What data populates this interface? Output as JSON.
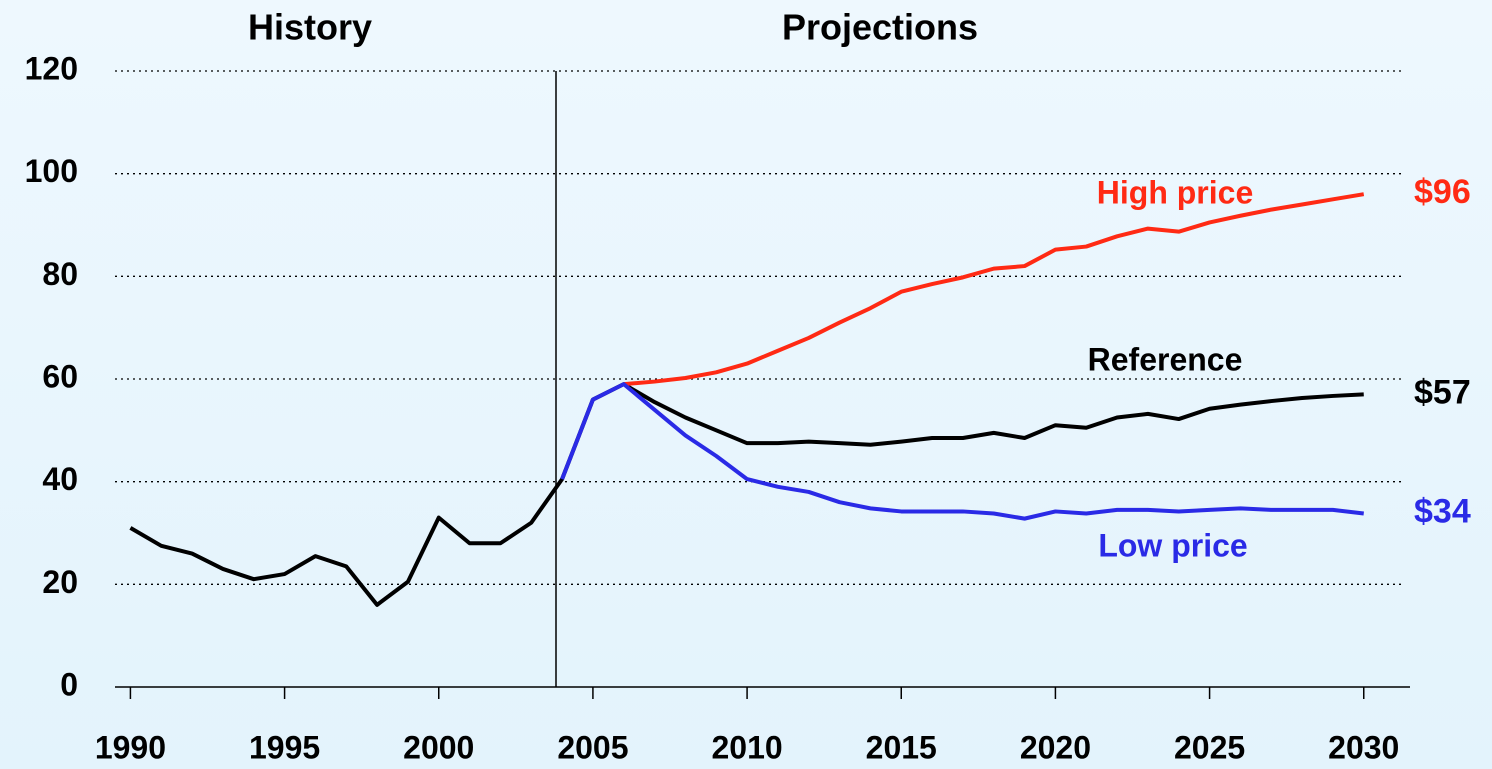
{
  "chart_data": {
    "type": "line",
    "annotations": [
      "History",
      "Projections"
    ],
    "x": [
      1990,
      1991,
      1992,
      1993,
      1994,
      1995,
      1996,
      1997,
      1998,
      1999,
      2000,
      2001,
      2002,
      2003,
      2004,
      2005,
      2006,
      2007,
      2008,
      2009,
      2010,
      2011,
      2012,
      2013,
      2014,
      2015,
      2016,
      2017,
      2018,
      2019,
      2020,
      2021,
      2022,
      2023,
      2024,
      2025,
      2026,
      2027,
      2028,
      2029,
      2030
    ],
    "series": [
      {
        "name": "Reference",
        "color": "#000000",
        "values": [
          31,
          27.5,
          26,
          23,
          21,
          22,
          25.5,
          23.5,
          16,
          20.5,
          33,
          28,
          28,
          32,
          40.5,
          56,
          59,
          55.5,
          52.5,
          50,
          47.5,
          47.5,
          47.8,
          47.5,
          47.2,
          47.8,
          48.5,
          48.5,
          49.5,
          48.5,
          51,
          50.5,
          52.5,
          53.2,
          52.2,
          54.2,
          55,
          55.7,
          56.3,
          56.7,
          57
        ],
        "value_labels": [
          null,
          null,
          null,
          null,
          null,
          null,
          null,
          null,
          null,
          null,
          null,
          null,
          null,
          null,
          null,
          null,
          null,
          null,
          null,
          null,
          null,
          null,
          null,
          null,
          null,
          null,
          null,
          null,
          null,
          null,
          null,
          null,
          null,
          null,
          null,
          null,
          null,
          null,
          null,
          null,
          "$57"
        ]
      },
      {
        "name": "High price",
        "color": "#ff2a14",
        "values": [
          null,
          null,
          null,
          null,
          null,
          null,
          null,
          null,
          null,
          null,
          null,
          null,
          null,
          null,
          null,
          null,
          59,
          59.5,
          60.2,
          61.3,
          63,
          65.5,
          68,
          71,
          73.8,
          77,
          78.5,
          79.8,
          81.5,
          82,
          85.2,
          85.8,
          87.8,
          89.3,
          88.7,
          90.5,
          91.8,
          93,
          94,
          95,
          96
        ],
        "value_labels": [
          null,
          null,
          null,
          null,
          null,
          null,
          null,
          null,
          null,
          null,
          null,
          null,
          null,
          null,
          null,
          null,
          null,
          null,
          null,
          null,
          null,
          null,
          null,
          null,
          null,
          null,
          null,
          null,
          null,
          null,
          null,
          null,
          null,
          null,
          null,
          null,
          null,
          null,
          null,
          null,
          "$96"
        ]
      },
      {
        "name": "Low price",
        "color": "#2a2ae6",
        "values": [
          null,
          null,
          null,
          null,
          null,
          null,
          null,
          null,
          null,
          null,
          null,
          null,
          null,
          null,
          40.5,
          56,
          59,
          54,
          49,
          45,
          40.5,
          39,
          38,
          36,
          34.8,
          34.2,
          34.2,
          34.2,
          33.8,
          32.8,
          34.2,
          33.8,
          34.5,
          34.5,
          34.2,
          34.5,
          34.8,
          34.5,
          34.5,
          34.5,
          33.8
        ],
        "value_labels": [
          null,
          null,
          null,
          null,
          null,
          null,
          null,
          null,
          null,
          null,
          null,
          null,
          null,
          null,
          null,
          null,
          null,
          null,
          null,
          null,
          null,
          null,
          null,
          null,
          null,
          null,
          null,
          null,
          null,
          null,
          null,
          null,
          null,
          null,
          null,
          null,
          null,
          null,
          null,
          null,
          "$34"
        ]
      }
    ],
    "xlim": [
      1989.5,
      2031.5
    ],
    "xticks": [
      1990,
      1995,
      2000,
      2005,
      2010,
      2015,
      2020,
      2025,
      2030
    ],
    "ylim": [
      0,
      120
    ],
    "yticks": [
      0,
      20,
      40,
      60,
      80,
      100,
      120
    ],
    "grid": true
  }
}
